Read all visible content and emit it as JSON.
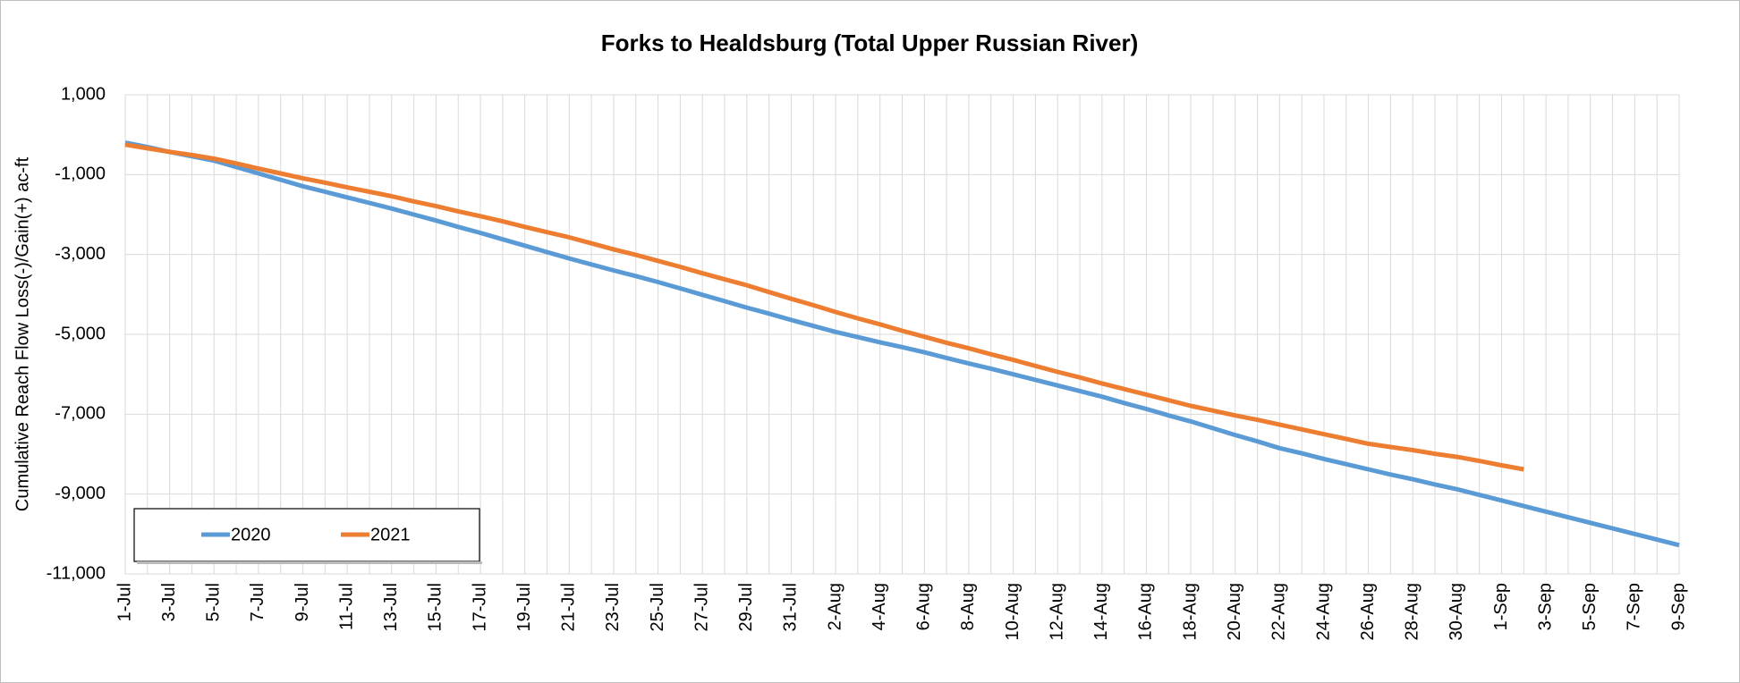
{
  "chart_data": {
    "type": "line",
    "title": "Forks to Healdsburg (Total Upper Russian River)",
    "y_label": "Cumulative Reach Flow Loss(-)/Gain(+)  ac-ft",
    "categories": [
      "1-Jul",
      null,
      "3-Jul",
      null,
      "5-Jul",
      null,
      "7-Jul",
      null,
      "9-Jul",
      null,
      "11-Jul",
      null,
      "13-Jul",
      null,
      "15-Jul",
      null,
      "17-Jul",
      null,
      "19-Jul",
      null,
      "21-Jul",
      null,
      "23-Jul",
      null,
      "25-Jul",
      null,
      "27-Jul",
      null,
      "29-Jul",
      null,
      "31-Jul",
      null,
      "2-Aug",
      null,
      "4-Aug",
      null,
      "6-Aug",
      null,
      "8-Aug",
      null,
      "10-Aug",
      null,
      "12-Aug",
      null,
      "14-Aug",
      null,
      "16-Aug",
      null,
      "18-Aug",
      null,
      "20-Aug",
      null,
      "22-Aug",
      null,
      "24-Aug",
      null,
      "26-Aug",
      null,
      "28-Aug",
      null,
      "30-Aug",
      null,
      "1-Sep",
      null,
      "3-Sep",
      null,
      "5-Sep",
      null,
      "7-Sep",
      null,
      "9-Sep"
    ],
    "series": [
      {
        "name": "2020",
        "color": "#5b9bd5",
        "values": [
          -200,
          -310,
          -430,
          -540,
          -650,
          -810,
          -970,
          -1130,
          -1290,
          -1430,
          -1570,
          -1710,
          -1850,
          -2000,
          -2150,
          -2310,
          -2460,
          -2620,
          -2780,
          -2940,
          -3100,
          -3250,
          -3400,
          -3540,
          -3690,
          -3850,
          -4010,
          -4170,
          -4330,
          -4480,
          -4640,
          -4790,
          -4940,
          -5070,
          -5200,
          -5320,
          -5450,
          -5590,
          -5730,
          -5860,
          -6000,
          -6140,
          -6280,
          -6420,
          -6560,
          -6720,
          -6870,
          -7030,
          -7180,
          -7350,
          -7520,
          -7680,
          -7850,
          -7980,
          -8120,
          -8250,
          -8380,
          -8510,
          -8630,
          -8760,
          -8880,
          -9020,
          -9160,
          -9300,
          -9440,
          -9580,
          -9720,
          -9860,
          -10000,
          -10140,
          -10280
        ]
      },
      {
        "name": "2021",
        "color": "#ed7d31",
        "values": [
          -250,
          -340,
          -430,
          -510,
          -600,
          -720,
          -850,
          -970,
          -1090,
          -1200,
          -1320,
          -1430,
          -1540,
          -1670,
          -1790,
          -1920,
          -2040,
          -2170,
          -2310,
          -2440,
          -2570,
          -2720,
          -2870,
          -3010,
          -3160,
          -3310,
          -3470,
          -3620,
          -3770,
          -3940,
          -4110,
          -4270,
          -4440,
          -4600,
          -4750,
          -4910,
          -5060,
          -5210,
          -5350,
          -5500,
          -5640,
          -5790,
          -5940,
          -6080,
          -6230,
          -6370,
          -6510,
          -6650,
          -6790,
          -6910,
          -7030,
          -7140,
          -7260,
          -7380,
          -7500,
          -7620,
          -7740,
          -7820,
          -7900,
          -7990,
          -8070,
          -8170,
          -8280,
          -8380,
          null,
          null,
          null,
          null,
          null,
          null,
          null
        ]
      }
    ],
    "ylim": [
      -11000,
      1000
    ],
    "yticks": [
      {
        "value": -11000,
        "label": "-11,000"
      },
      {
        "value": -9000,
        "label": "-9,000"
      },
      {
        "value": -7000,
        "label": "-7,000"
      },
      {
        "value": -5000,
        "label": "-5,000"
      },
      {
        "value": -3000,
        "label": "-3,000"
      },
      {
        "value": -1000,
        "label": "-1,000"
      },
      {
        "value": 1000,
        "label": "1,000"
      }
    ],
    "grid": true,
    "legend": "lower left"
  }
}
